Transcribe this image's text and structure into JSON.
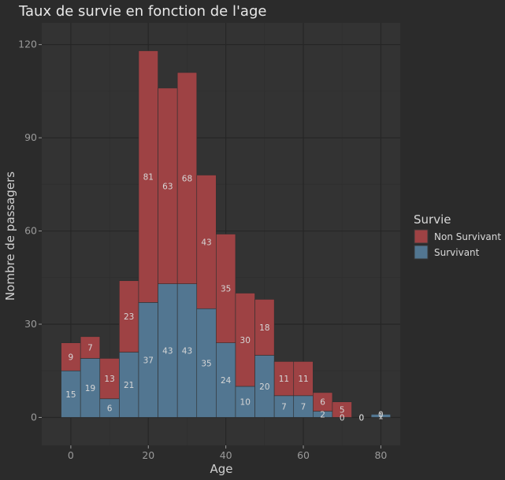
{
  "chart_data": {
    "type": "bar",
    "stacked": true,
    "title": "Taux de survie en fonction de l'age",
    "xlabel": "Age",
    "ylabel": "Nombre de passagers",
    "bin_width": 5,
    "bins": [
      0,
      5,
      10,
      15,
      20,
      25,
      30,
      35,
      40,
      45,
      50,
      55,
      60,
      65,
      70,
      75,
      80
    ],
    "xlim": [
      -7.5,
      85
    ],
    "ylim": [
      -9,
      127
    ],
    "x_ticks": [
      "0",
      "20",
      "40",
      "60",
      "80"
    ],
    "y_ticks": [
      "0",
      "30",
      "60",
      "90",
      "120"
    ],
    "series": [
      {
        "name": "Non Survivant",
        "color": "#9e4244",
        "values": [
          9,
          7,
          13,
          23,
          81,
          63,
          68,
          43,
          35,
          30,
          18,
          11,
          11,
          6,
          5,
          0,
          0
        ],
        "value_labels": [
          "9",
          "7",
          "13",
          "23",
          "81",
          "63",
          "68",
          "43",
          "35",
          "30",
          "18",
          "11",
          "11",
          "6",
          "5",
          "0",
          "0"
        ]
      },
      {
        "name": "Survivant",
        "color": "#527691",
        "values": [
          15,
          19,
          6,
          21,
          37,
          43,
          43,
          35,
          24,
          10,
          20,
          7,
          7,
          2,
          0,
          0,
          1
        ],
        "value_labels": [
          "15",
          "19",
          "6",
          "21",
          "37",
          "43",
          "43",
          "35",
          "24",
          "10",
          "20",
          "7",
          "7",
          "2",
          "0",
          "0",
          "1"
        ]
      }
    ],
    "legend": {
      "title": "Survie",
      "position": "right",
      "items": [
        "Non Survivant",
        "Survivant"
      ]
    },
    "grid": true,
    "panel_color": "#333333",
    "grid_color": "#262626"
  }
}
